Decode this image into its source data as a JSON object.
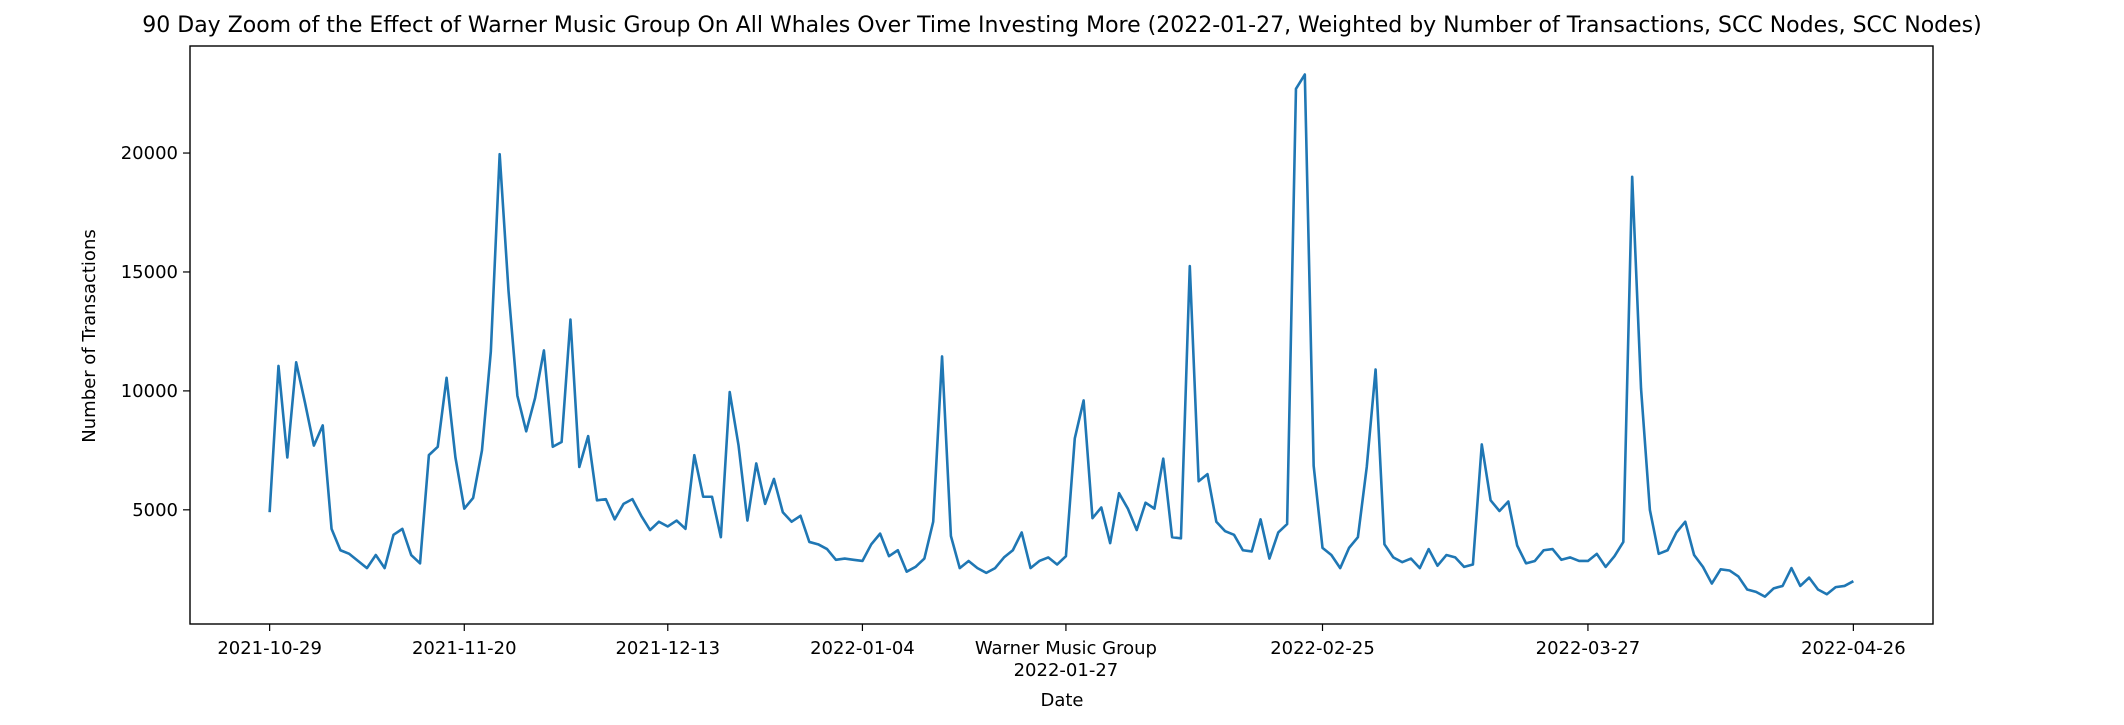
{
  "chart_data": {
    "type": "line",
    "title": "90 Day Zoom of the Effect of Warner Music Group On All Whales Over Time Investing More (2022-01-27, Weighted by Number of Transactions, SCC Nodes, SCC Nodes)",
    "xlabel": "Date",
    "ylabel": "Number of Transactions",
    "xlim": [
      "2021-10-20",
      "2022-05-05"
    ],
    "ylim": [
      200,
      24500
    ],
    "grid": false,
    "legend": "none",
    "line_color": "#1f77b4",
    "y_ticks": [
      5000,
      10000,
      15000,
      20000
    ],
    "x_ticks": [
      {
        "date": "2021-10-29",
        "label": "2021-10-29"
      },
      {
        "date": "2021-11-20",
        "label": "2021-11-20"
      },
      {
        "date": "2021-12-13",
        "label": "2021-12-13"
      },
      {
        "date": "2022-01-04",
        "label": "2022-01-04"
      },
      {
        "date": "2022-01-27",
        "label": "Warner Music Group\n2022-01-27"
      },
      {
        "date": "2022-02-25",
        "label": "2022-02-25"
      },
      {
        "date": "2022-03-27",
        "label": "2022-03-27"
      },
      {
        "date": "2022-04-26",
        "label": "2022-04-26"
      }
    ],
    "series": [
      {
        "values": [
          [
            "2021-10-29",
            4900
          ],
          [
            "2021-10-30",
            11050
          ],
          [
            "2021-10-31",
            7200
          ],
          [
            "2021-11-01",
            11200
          ],
          [
            "2021-11-02",
            9500
          ],
          [
            "2021-11-03",
            7700
          ],
          [
            "2021-11-04",
            8550
          ],
          [
            "2021-11-05",
            4200
          ],
          [
            "2021-11-06",
            3300
          ],
          [
            "2021-11-07",
            3150
          ],
          [
            "2021-11-08",
            2850
          ],
          [
            "2021-11-09",
            2550
          ],
          [
            "2021-11-10",
            3100
          ],
          [
            "2021-11-11",
            2550
          ],
          [
            "2021-11-12",
            3950
          ],
          [
            "2021-11-13",
            4200
          ],
          [
            "2021-11-14",
            3100
          ],
          [
            "2021-11-15",
            2750
          ],
          [
            "2021-11-16",
            7300
          ],
          [
            "2021-11-17",
            7650
          ],
          [
            "2021-11-18",
            10550
          ],
          [
            "2021-11-19",
            7200
          ],
          [
            "2021-11-20",
            5050
          ],
          [
            "2021-11-21",
            5500
          ],
          [
            "2021-11-22",
            7500
          ],
          [
            "2021-11-23",
            11650
          ],
          [
            "2021-11-24",
            19950
          ],
          [
            "2021-11-25",
            14200
          ],
          [
            "2021-11-26",
            9800
          ],
          [
            "2021-11-27",
            8300
          ],
          [
            "2021-11-28",
            9700
          ],
          [
            "2021-11-29",
            11700
          ],
          [
            "2021-11-30",
            7650
          ],
          [
            "2021-12-01",
            7850
          ],
          [
            "2021-12-02",
            13000
          ],
          [
            "2021-12-03",
            6800
          ],
          [
            "2021-12-04",
            8100
          ],
          [
            "2021-12-05",
            5400
          ],
          [
            "2021-12-06",
            5450
          ],
          [
            "2021-12-07",
            4600
          ],
          [
            "2021-12-08",
            5250
          ],
          [
            "2021-12-09",
            5450
          ],
          [
            "2021-12-10",
            4750
          ],
          [
            "2021-12-11",
            4150
          ],
          [
            "2021-12-12",
            4500
          ],
          [
            "2021-12-13",
            4300
          ],
          [
            "2021-12-14",
            4550
          ],
          [
            "2021-12-15",
            4200
          ],
          [
            "2021-12-16",
            7300
          ],
          [
            "2021-12-17",
            5550
          ],
          [
            "2021-12-18",
            5550
          ],
          [
            "2021-12-19",
            3850
          ],
          [
            "2021-12-20",
            9950
          ],
          [
            "2021-12-21",
            7700
          ],
          [
            "2021-12-22",
            4550
          ],
          [
            "2021-12-23",
            6950
          ],
          [
            "2021-12-24",
            5250
          ],
          [
            "2021-12-25",
            6300
          ],
          [
            "2021-12-26",
            4900
          ],
          [
            "2021-12-27",
            4500
          ],
          [
            "2021-12-28",
            4750
          ],
          [
            "2021-12-29",
            3650
          ],
          [
            "2021-12-30",
            3550
          ],
          [
            "2021-12-31",
            3350
          ],
          [
            "2022-01-01",
            2900
          ],
          [
            "2022-01-02",
            2950
          ],
          [
            "2022-01-03",
            2900
          ],
          [
            "2022-01-04",
            2850
          ],
          [
            "2022-01-05",
            3550
          ],
          [
            "2022-01-06",
            4000
          ],
          [
            "2022-01-07",
            3050
          ],
          [
            "2022-01-08",
            3300
          ],
          [
            "2022-01-09",
            2400
          ],
          [
            "2022-01-10",
            2600
          ],
          [
            "2022-01-11",
            2950
          ],
          [
            "2022-01-12",
            4500
          ],
          [
            "2022-01-13",
            11450
          ],
          [
            "2022-01-14",
            3900
          ],
          [
            "2022-01-15",
            2550
          ],
          [
            "2022-01-16",
            2850
          ],
          [
            "2022-01-17",
            2550
          ],
          [
            "2022-01-18",
            2350
          ],
          [
            "2022-01-19",
            2550
          ],
          [
            "2022-01-20",
            3000
          ],
          [
            "2022-01-21",
            3300
          ],
          [
            "2022-01-22",
            4050
          ],
          [
            "2022-01-23",
            2550
          ],
          [
            "2022-01-24",
            2850
          ],
          [
            "2022-01-25",
            3000
          ],
          [
            "2022-01-26",
            2700
          ],
          [
            "2022-01-27",
            3050
          ],
          [
            "2022-01-28",
            8000
          ],
          [
            "2022-01-29",
            9600
          ],
          [
            "2022-01-30",
            4650
          ],
          [
            "2022-01-31",
            5100
          ],
          [
            "2022-02-01",
            3600
          ],
          [
            "2022-02-02",
            5700
          ],
          [
            "2022-02-03",
            5050
          ],
          [
            "2022-02-04",
            4150
          ],
          [
            "2022-02-05",
            5300
          ],
          [
            "2022-02-06",
            5050
          ],
          [
            "2022-02-07",
            7150
          ],
          [
            "2022-02-08",
            3850
          ],
          [
            "2022-02-09",
            3800
          ],
          [
            "2022-02-10",
            15250
          ],
          [
            "2022-02-11",
            6200
          ],
          [
            "2022-02-12",
            6500
          ],
          [
            "2022-02-13",
            4500
          ],
          [
            "2022-02-14",
            4100
          ],
          [
            "2022-02-15",
            3950
          ],
          [
            "2022-02-16",
            3300
          ],
          [
            "2022-02-17",
            3250
          ],
          [
            "2022-02-18",
            4600
          ],
          [
            "2022-02-19",
            2950
          ],
          [
            "2022-02-20",
            4050
          ],
          [
            "2022-02-21",
            4400
          ],
          [
            "2022-02-22",
            22700
          ],
          [
            "2022-02-23",
            23300
          ],
          [
            "2022-02-24",
            6850
          ],
          [
            "2022-02-25",
            3400
          ],
          [
            "2022-02-26",
            3100
          ],
          [
            "2022-02-27",
            2550
          ],
          [
            "2022-02-28",
            3400
          ],
          [
            "2022-03-01",
            3850
          ],
          [
            "2022-03-02",
            6800
          ],
          [
            "2022-03-03",
            10900
          ],
          [
            "2022-03-04",
            3550
          ],
          [
            "2022-03-05",
            3000
          ],
          [
            "2022-03-06",
            2800
          ],
          [
            "2022-03-07",
            2950
          ],
          [
            "2022-03-08",
            2550
          ],
          [
            "2022-03-09",
            3350
          ],
          [
            "2022-03-10",
            2650
          ],
          [
            "2022-03-11",
            3100
          ],
          [
            "2022-03-12",
            3000
          ],
          [
            "2022-03-13",
            2600
          ],
          [
            "2022-03-14",
            2700
          ],
          [
            "2022-03-15",
            7750
          ],
          [
            "2022-03-16",
            5400
          ],
          [
            "2022-03-17",
            4950
          ],
          [
            "2022-03-18",
            5350
          ],
          [
            "2022-03-19",
            3500
          ],
          [
            "2022-03-20",
            2750
          ],
          [
            "2022-03-21",
            2850
          ],
          [
            "2022-03-22",
            3300
          ],
          [
            "2022-03-23",
            3350
          ],
          [
            "2022-03-24",
            2900
          ],
          [
            "2022-03-25",
            3000
          ],
          [
            "2022-03-26",
            2850
          ],
          [
            "2022-03-27",
            2850
          ],
          [
            "2022-03-28",
            3150
          ],
          [
            "2022-03-29",
            2600
          ],
          [
            "2022-03-30",
            3050
          ],
          [
            "2022-03-31",
            3650
          ],
          [
            "2022-04-01",
            19000
          ],
          [
            "2022-04-02",
            10100
          ],
          [
            "2022-04-03",
            5000
          ],
          [
            "2022-04-04",
            3150
          ],
          [
            "2022-04-05",
            3300
          ],
          [
            "2022-04-06",
            4050
          ],
          [
            "2022-04-07",
            4500
          ],
          [
            "2022-04-08",
            3100
          ],
          [
            "2022-04-09",
            2600
          ],
          [
            "2022-04-10",
            1900
          ],
          [
            "2022-04-11",
            2500
          ],
          [
            "2022-04-12",
            2450
          ],
          [
            "2022-04-13",
            2200
          ],
          [
            "2022-04-14",
            1650
          ],
          [
            "2022-04-15",
            1550
          ],
          [
            "2022-04-16",
            1350
          ],
          [
            "2022-04-17",
            1700
          ],
          [
            "2022-04-18",
            1800
          ],
          [
            "2022-04-19",
            2550
          ],
          [
            "2022-04-20",
            1800
          ],
          [
            "2022-04-21",
            2150
          ],
          [
            "2022-04-22",
            1650
          ],
          [
            "2022-04-23",
            1450
          ],
          [
            "2022-04-24",
            1750
          ],
          [
            "2022-04-25",
            1800
          ],
          [
            "2022-04-26",
            2000
          ]
        ]
      }
    ]
  }
}
